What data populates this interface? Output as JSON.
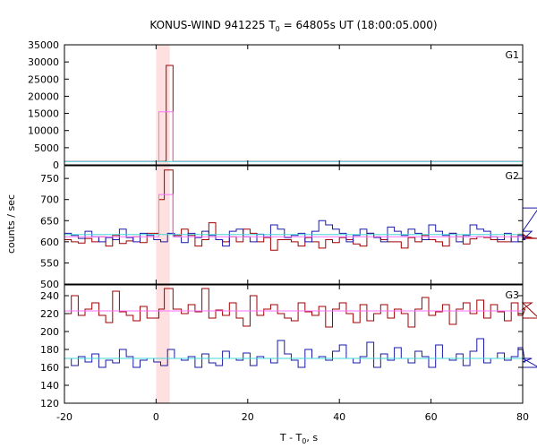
{
  "chart_data": {
    "type": "line",
    "title_parts": [
      "KONUS-WIND 941225 T",
      "0",
      " = 64805s UT (18:00:05.000)"
    ],
    "xlabel_parts": [
      "T - T",
      "0",
      ", s"
    ],
    "ylabel": "counts / sec",
    "xlim": [
      -20,
      80
    ],
    "x_ticks": [
      "-20",
      "0",
      "20",
      "40",
      "60",
      "80"
    ],
    "highlight_interval": [
      0,
      3
    ],
    "colors": {
      "dark_red": "#a00000",
      "blue": "#1a1aa8",
      "pink": "#ff70ff",
      "cyan": "#40d8d8",
      "highlight": "#ffe0e0"
    },
    "panels": [
      {
        "label": "G1",
        "ylim": [
          0,
          35000
        ],
        "y_ticks": [
          "0",
          "5000",
          "10000",
          "15000",
          "20000",
          "25000",
          "30000",
          "35000"
        ],
        "background": 1000,
        "series": [
          {
            "color": "dark_red",
            "bin_width": 2,
            "values": [
              [
                -20,
                1050
              ],
              [
                -18,
                1050
              ],
              [
                -16,
                1050
              ],
              [
                -14,
                1050
              ],
              [
                -12,
                1050
              ],
              [
                -10,
                1050
              ],
              [
                -8,
                1050
              ],
              [
                -6,
                1050
              ],
              [
                -4,
                1050
              ],
              [
                -2,
                1050
              ],
              [
                0.0,
                1050
              ],
              [
                1.0,
                1050
              ],
              [
                2.0,
                1100
              ],
              [
                2.2,
                29000
              ],
              [
                3.7,
                1050
              ],
              [
                4,
                1050
              ],
              [
                10,
                1050
              ],
              [
                20,
                1050
              ],
              [
                30,
                1050
              ],
              [
                40,
                1050
              ],
              [
                50,
                1050
              ],
              [
                60,
                1050
              ],
              [
                70,
                1050
              ],
              [
                80,
                1050
              ]
            ]
          },
          {
            "color": "pink",
            "bin_width": 2,
            "values": [
              [
                -20,
                1000
              ],
              [
                0.5,
                1000
              ],
              [
                0.6,
                15500
              ],
              [
                2.2,
                15500
              ],
              [
                3.7,
                1000
              ],
              [
                80,
                1000
              ]
            ]
          },
          {
            "color": "cyan",
            "bin_width": 2,
            "values": [
              [
                -20,
                1000
              ],
              [
                80,
                1000
              ]
            ]
          }
        ]
      },
      {
        "label": "G2",
        "ylim": [
          500,
          780
        ],
        "y_ticks": [
          "500",
          "550",
          "600",
          "650",
          "700",
          "750"
        ],
        "series": [
          {
            "color": "dark_red",
            "bin_width": 1.5,
            "values": [
              605,
              600,
              597,
              608,
              600,
              612,
              590,
              615,
              596,
              602,
              612,
              598,
              620,
              595,
              640,
              600,
              615,
              630,
              615,
              590,
              605,
              645,
              605,
              600,
              612,
              600,
              630,
              620,
              600,
              610,
              580,
              605,
              605,
              600,
              590,
              610,
              600,
              585,
              605,
              598,
              610,
              605,
              595,
              590,
              620,
              612,
              605,
              600,
              600,
              585,
              610,
              600,
              615,
              605,
              600,
              590,
              620,
              612,
              595,
              607,
              612,
              610,
              605,
              600,
              600,
              612,
              618,
              615,
              610,
              608
            ],
            "burst": [
              [
                0.6,
                700
              ],
              [
                1.8,
                770
              ],
              [
                3.7,
                620
              ]
            ]
          },
          {
            "color": "blue",
            "bin_width": 1.5,
            "values": [
              620,
              615,
              608,
              625,
              612,
              600,
              610,
              605,
              630,
              610,
              600,
              620,
              615,
              605,
              600,
              620,
              612,
              598,
              620,
              610,
              625,
              615,
              605,
              590,
              625,
              630,
              612,
              600,
              618,
              612,
              640,
              630,
              610,
              615,
              620,
              600,
              625,
              650,
              640,
              630,
              620,
              600,
              615,
              630,
              620,
              610,
              600,
              635,
              625,
              615,
              630,
              620,
              605,
              640,
              625,
              615,
              620,
              600,
              615,
              640,
              630,
              625,
              612,
              605,
              620,
              600,
              615,
              605,
              625,
              680
            ]
          },
          {
            "color": "pink",
            "bin_width": 2,
            "values": [
              [
                -20,
                612
              ],
              [
                0.6,
                612
              ],
              [
                0.6,
                712
              ],
              [
                2.2,
                712
              ],
              [
                3.7,
                612
              ],
              [
                80,
                612
              ]
            ]
          },
          {
            "color": "cyan",
            "bin_width": 2,
            "values": [
              [
                -20,
                617
              ],
              [
                80,
                617
              ]
            ]
          }
        ]
      },
      {
        "label": "G3",
        "ylim": [
          120,
          252
        ],
        "y_ticks": [
          "120",
          "140",
          "160",
          "180",
          "200",
          "220",
          "240"
        ],
        "series": [
          {
            "color": "dark_red",
            "bin_width": 1.5,
            "values": [
              220,
              240,
              218,
              225,
              232,
              218,
              210,
              245,
              222,
              218,
              212,
              228,
              215,
              225,
              242,
              218,
              225,
              220,
              230,
              222,
              248,
              215,
              224,
              218,
              232,
              215,
              206,
              240,
              218,
              225,
              230,
              220,
              215,
              212,
              232,
              222,
              218,
              228,
              205,
              225,
              232,
              220,
              210,
              230,
              212,
              220,
              230,
              215,
              225,
              220,
              205,
              225,
              238,
              218,
              222,
              230,
              208,
              225,
              232,
              220,
              235,
              215,
              230,
              222,
              212,
              232,
              218,
              225,
              232,
              215
            ],
            "burst": [
              [
                0.6,
                225
              ],
              [
                1.8,
                248
              ],
              [
                3.7,
                225
              ]
            ]
          },
          {
            "color": "blue",
            "bin_width": 1.5,
            "values": [
              170,
              162,
              172,
              166,
              175,
              160,
              168,
              165,
              180,
              172,
              160,
              168,
              170,
              166,
              162,
              180,
              170,
              168,
              172,
              160,
              175,
              165,
              162,
              178,
              170,
              168,
              176,
              162,
              172,
              170,
              165,
              190,
              175,
              168,
              160,
              180,
              170,
              172,
              168,
              178,
              185,
              170,
              165,
              172,
              188,
              160,
              175,
              168,
              182,
              170,
              165,
              178,
              172,
              160,
              185,
              170,
              168,
              175,
              162,
              178,
              192,
              165,
              170,
              176,
              168,
              172,
              182,
              166,
              170,
              160
            ]
          },
          {
            "color": "pink",
            "bin_width": 2,
            "values": [
              [
                -20,
                223
              ],
              [
                80,
                223
              ]
            ]
          },
          {
            "color": "cyan",
            "bin_width": 2,
            "values": [
              [
                -20,
                170
              ],
              [
                80,
                170
              ]
            ]
          }
        ]
      }
    ]
  }
}
